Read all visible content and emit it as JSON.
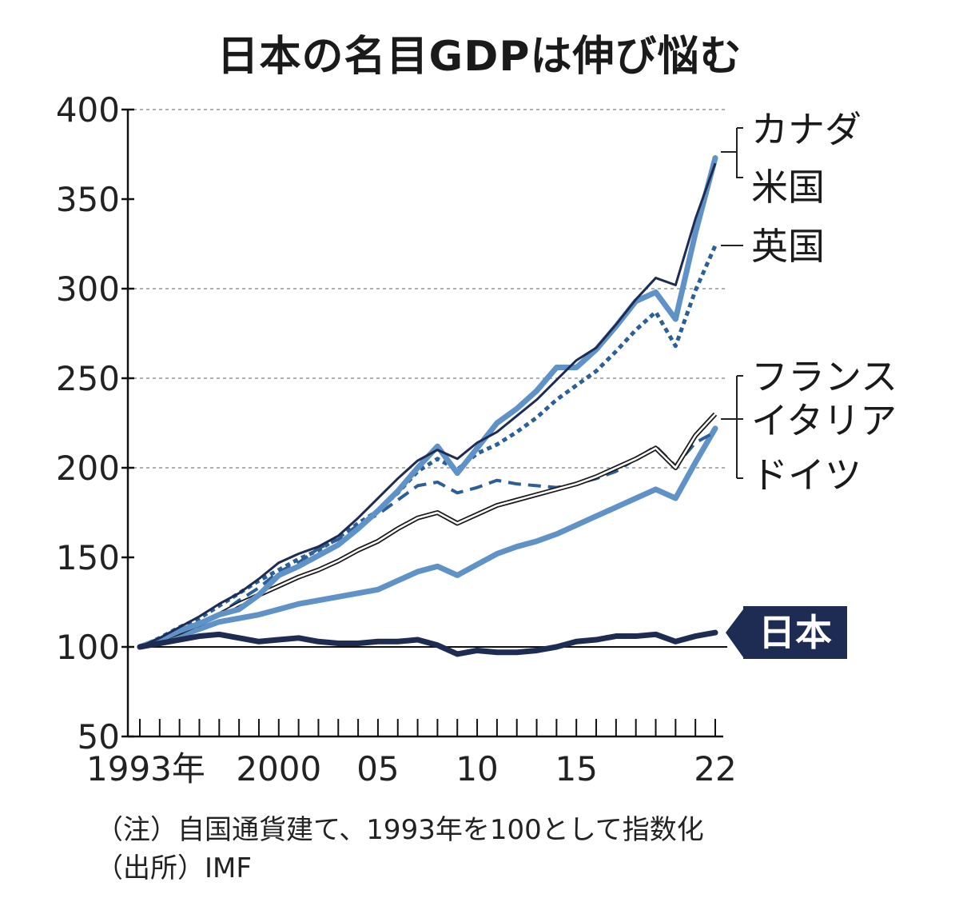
{
  "chart_data": {
    "type": "line",
    "title": "日本の名目GDPは伸び悩む",
    "xlabel": "",
    "ylabel": "",
    "x": [
      1993,
      1994,
      1995,
      1996,
      1997,
      1998,
      1999,
      2000,
      2001,
      2002,
      2003,
      2004,
      2005,
      2006,
      2007,
      2008,
      2009,
      2010,
      2011,
      2012,
      2013,
      2014,
      2015,
      2016,
      2017,
      2018,
      2019,
      2020,
      2021,
      2022
    ],
    "xlim": [
      1993,
      2022
    ],
    "ylim": [
      50,
      400
    ],
    "y_ticks": [
      "400",
      "350",
      "300",
      "250",
      "200",
      "150",
      "100",
      "50"
    ],
    "x_tick_labels": [
      {
        "year": 1993,
        "label": "1993年"
      },
      {
        "year": 2000,
        "label": "2000"
      },
      {
        "year": 2005,
        "label": "05"
      },
      {
        "year": 2010,
        "label": "10"
      },
      {
        "year": 2015,
        "label": "15"
      },
      {
        "year": 2022,
        "label": "22"
      }
    ],
    "grid_y": [
      200,
      250,
      300,
      400
    ],
    "series": [
      {
        "name": "カナダ",
        "color": "#5f93c8",
        "style": "thick",
        "values": [
          100,
          104,
          109,
          113,
          118,
          121,
          129,
          140,
          145,
          151,
          157,
          166,
          176,
          187,
          200,
          212,
          197,
          211,
          225,
          233,
          243,
          256,
          256,
          266,
          279,
          293,
          298,
          283,
          331,
          373
        ]
      },
      {
        "name": "米国",
        "color": "#1e2b52",
        "style": "thin",
        "values": [
          100,
          105,
          111,
          117,
          124,
          130,
          138,
          147,
          152,
          156,
          162,
          172,
          183,
          194,
          204,
          210,
          205,
          214,
          220,
          229,
          238,
          249,
          260,
          267,
          280,
          294,
          306,
          302,
          339,
          370
        ]
      },
      {
        "name": "英国",
        "color": "#2c5f96",
        "style": "dotted",
        "values": [
          100,
          105,
          111,
          116,
          123,
          130,
          137,
          143,
          149,
          154,
          161,
          169,
          176,
          186,
          198,
          205,
          199,
          208,
          213,
          220,
          228,
          238,
          246,
          254,
          265,
          277,
          287,
          268,
          299,
          324
        ]
      },
      {
        "name": "フランス",
        "color": "#2c5f96",
        "style": "dashed",
        "values": [
          100,
          103,
          109,
          112,
          118,
          126,
          133,
          142,
          147,
          155,
          160,
          168,
          174,
          182,
          190,
          192,
          186,
          189,
          193,
          191,
          190,
          189,
          191,
          194,
          198,
          205,
          212,
          201,
          214,
          220
        ]
      },
      {
        "name": "イタリア",
        "color": "#ffffff",
        "style": "outlined",
        "values": [
          100,
          104,
          108,
          113,
          118,
          124,
          129,
          134,
          139,
          143,
          148,
          154,
          159,
          166,
          172,
          175,
          169,
          174,
          179,
          182,
          185,
          188,
          191,
          195,
          200,
          205,
          211,
          200,
          218,
          230
        ]
      },
      {
        "name": "ドイツ",
        "color": "#5f93c8",
        "style": "thick",
        "values": [
          100,
          104,
          106,
          110,
          114,
          116,
          118,
          121,
          124,
          126,
          128,
          130,
          132,
          137,
          142,
          145,
          140,
          146,
          152,
          156,
          159,
          163,
          168,
          173,
          178,
          183,
          188,
          183,
          203,
          222
        ]
      },
      {
        "name": "日本",
        "color": "#1e2b52",
        "style": "thick",
        "values": [
          100,
          102,
          104,
          106,
          107,
          105,
          103,
          104,
          105,
          103,
          102,
          102,
          103,
          103,
          104,
          101,
          96,
          98,
          97,
          97,
          98,
          100,
          103,
          104,
          106,
          106,
          107,
          103,
          106,
          108
        ]
      }
    ],
    "legend": {
      "group_1": [
        "カナダ",
        "米国"
      ],
      "single": "英国",
      "group_2": [
        "フランス",
        "イタリア",
        "ドイツ"
      ],
      "highlight": "日本",
      "highlight_color": "#1e2b52"
    }
  },
  "notes": {
    "note": "（注）自国通貨建て、1993年を100として指数化",
    "source": "（出所）IMF"
  }
}
